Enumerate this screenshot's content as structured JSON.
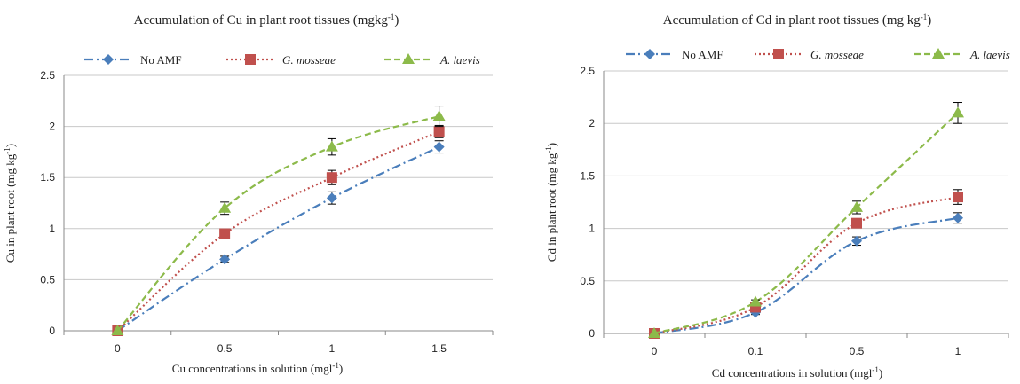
{
  "colors": {
    "no_amf": "#4a7ebb",
    "g_mosseae": "#c0504d",
    "a_laevis": "#8cba4a",
    "grid": "#c8c8c8",
    "axis": "#888888",
    "errorbar": "#000000"
  },
  "chart_data": [
    {
      "type": "line",
      "title": "Accumulation of Cu in plant root  tissues (mgkg",
      "title_sup": "-1",
      "title_end": ")",
      "xlabel": "Cu concentrations in solution (mgl",
      "xlabel_sup": "-1",
      "xlabel_end": ")",
      "ylabel": "Cu in plant root (mg kg",
      "ylabel_sup": "-1",
      "ylabel_end": ")",
      "categories": [
        "0",
        "0.5",
        "1",
        "1.5"
      ],
      "ylim": [
        0,
        2.5
      ],
      "yticks": [
        "0",
        "0.5",
        "1",
        "1.5",
        "2",
        "2.5"
      ],
      "grid": true,
      "legend_position": "top",
      "series": [
        {
          "name": "No AMF",
          "key": "no_amf",
          "marker": "diamond",
          "dash": "dashdot",
          "values": [
            0,
            0.7,
            1.3,
            1.8
          ],
          "errors": [
            0,
            0.03,
            0.06,
            0.06
          ]
        },
        {
          "name": "G. mosseae",
          "key": "g_mosseae",
          "marker": "square",
          "dash": "dotted",
          "italic": true,
          "values": [
            0,
            0.95,
            1.5,
            1.95
          ],
          "errors": [
            0,
            0.03,
            0.07,
            0.06
          ]
        },
        {
          "name": "A. laevis",
          "key": "a_laevis",
          "marker": "triangle",
          "dash": "dashed",
          "italic": true,
          "values": [
            0,
            1.2,
            1.8,
            2.1
          ],
          "errors": [
            0,
            0.06,
            0.08,
            0.1
          ]
        }
      ]
    },
    {
      "type": "line",
      "title": "Accumulation of Cd in plant root tissues  (mg kg",
      "title_sup": "-1",
      "title_end": ")",
      "xlabel": "Cd concentrations in solution (mgl",
      "xlabel_sup": "-1",
      "xlabel_end": ")",
      "ylabel": "Cd in plant root (mg kg",
      "ylabel_sup": "-1",
      "ylabel_end": ")",
      "categories": [
        "0",
        "0.1",
        "0.5",
        "1"
      ],
      "ylim": [
        0,
        2.5
      ],
      "yticks": [
        "0",
        "0.5",
        "1",
        "1.5",
        "2",
        "2.5"
      ],
      "grid": true,
      "legend_position": "top",
      "series": [
        {
          "name": "No AMF",
          "key": "no_amf",
          "marker": "diamond",
          "dash": "dashdot",
          "values": [
            0,
            0.2,
            0.88,
            1.1
          ],
          "errors": [
            0,
            0.02,
            0.04,
            0.05
          ]
        },
        {
          "name": "G. mosseae",
          "key": "g_mosseae",
          "marker": "square",
          "dash": "dotted",
          "italic": true,
          "values": [
            0,
            0.25,
            1.05,
            1.3
          ],
          "errors": [
            0,
            0.02,
            0.04,
            0.07
          ]
        },
        {
          "name": "A. laevis",
          "key": "a_laevis",
          "marker": "triangle",
          "dash": "dashed",
          "italic": true,
          "values": [
            0,
            0.3,
            1.2,
            2.1
          ],
          "errors": [
            0,
            0.02,
            0.06,
            0.1
          ]
        }
      ]
    }
  ]
}
